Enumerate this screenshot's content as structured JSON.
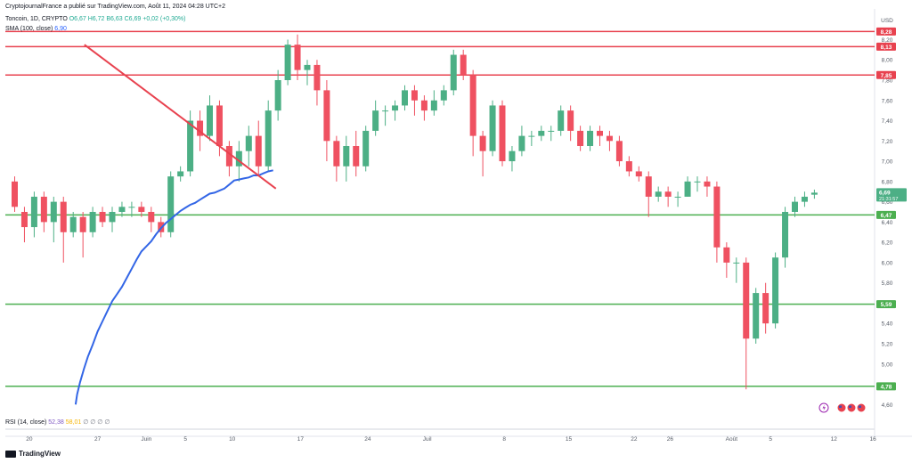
{
  "header": {
    "publish_line": "CryptojournalFrance a publié sur TradingView.com, Août 11, 2024 04:28 UTC+2",
    "symbol": "Toncoin, 1D, CRYPTO",
    "ohlc": "O6,67 H6,72 B6,63 C6,69 +0,02 (+0,30%)",
    "sma_label": "SMA (100, close)",
    "sma_value": "6,90"
  },
  "rsi": {
    "label": "RSI (14, close)",
    "value1": "52,38",
    "value2": "58,01",
    "extra": "∅ ∅ ∅ ∅"
  },
  "footer": {
    "brand": "TradingView"
  },
  "colors": {
    "up": "#4caf85",
    "down": "#ef5161",
    "sma": "#3366e6",
    "trendline": "#e8424f",
    "hline_red": "#e8424f",
    "hline_green": "#4caf50",
    "axis_text": "#555b66"
  },
  "chart_data": {
    "type": "candlestick",
    "currency": "USD",
    "ylim": [
      4.55,
      8.45
    ],
    "yticks": [
      "8,20",
      "8,00",
      "7,80",
      "7,60",
      "7,40",
      "7,20",
      "7,00",
      "6,80",
      "6,60",
      "6,40",
      "6,20",
      "6,00",
      "5,80",
      "5,60",
      "5,40",
      "5,20",
      "5,00",
      "4,80",
      "4,60"
    ],
    "xticks": [
      "20",
      "27",
      "Juin",
      "5",
      "10",
      "17",
      "24",
      "Juil",
      "8",
      "15",
      "22",
      "26",
      "Août",
      "5",
      "12",
      "16"
    ],
    "candles": [
      [
        6.8,
        6.55,
        6.85,
        6.5
      ],
      [
        6.5,
        6.35,
        6.55,
        6.2
      ],
      [
        6.35,
        6.65,
        6.7,
        6.25
      ],
      [
        6.65,
        6.4,
        6.7,
        6.3
      ],
      [
        6.4,
        6.6,
        6.65,
        6.2
      ],
      [
        6.6,
        6.3,
        6.65,
        6.0
      ],
      [
        6.3,
        6.45,
        6.5,
        6.25
      ],
      [
        6.45,
        6.3,
        6.5,
        6.05
      ],
      [
        6.3,
        6.5,
        6.55,
        6.25
      ],
      [
        6.5,
        6.4,
        6.55,
        6.35
      ],
      [
        6.4,
        6.5,
        6.55,
        6.3
      ],
      [
        6.5,
        6.55,
        6.6,
        6.45
      ],
      [
        6.55,
        6.55,
        6.6,
        6.45
      ],
      [
        6.55,
        6.5,
        6.6,
        6.45
      ],
      [
        6.5,
        6.4,
        6.55,
        6.3
      ],
      [
        6.4,
        6.3,
        6.45,
        6.25
      ],
      [
        6.3,
        6.85,
        6.9,
        6.25
      ],
      [
        6.85,
        6.9,
        6.95,
        6.8
      ],
      [
        6.9,
        7.4,
        7.5,
        6.85
      ],
      [
        7.4,
        7.25,
        7.5,
        7.1
      ],
      [
        7.25,
        7.55,
        7.65,
        7.2
      ],
      [
        7.55,
        7.15,
        7.6,
        7.05
      ],
      [
        7.15,
        6.95,
        7.2,
        6.85
      ],
      [
        6.95,
        7.1,
        7.2,
        6.8
      ],
      [
        7.1,
        7.25,
        7.35,
        6.95
      ],
      [
        7.25,
        6.95,
        7.4,
        6.85
      ],
      [
        6.95,
        7.5,
        7.6,
        6.9
      ],
      [
        7.5,
        7.8,
        7.9,
        7.4
      ],
      [
        7.8,
        8.15,
        8.2,
        7.75
      ],
      [
        8.15,
        7.9,
        8.25,
        7.8
      ],
      [
        7.9,
        7.95,
        8.0,
        7.75
      ],
      [
        7.95,
        7.7,
        8.0,
        7.55
      ],
      [
        7.7,
        7.2,
        7.8,
        7.0
      ],
      [
        7.2,
        6.95,
        7.25,
        6.8
      ],
      [
        6.95,
        7.15,
        7.25,
        6.8
      ],
      [
        7.15,
        6.95,
        7.3,
        6.85
      ],
      [
        6.95,
        7.3,
        7.35,
        6.9
      ],
      [
        7.3,
        7.5,
        7.6,
        7.25
      ],
      [
        7.5,
        7.5,
        7.55,
        7.35
      ],
      [
        7.5,
        7.55,
        7.6,
        7.4
      ],
      [
        7.55,
        7.7,
        7.75,
        7.5
      ],
      [
        7.7,
        7.6,
        7.75,
        7.45
      ],
      [
        7.6,
        7.5,
        7.65,
        7.4
      ],
      [
        7.5,
        7.6,
        7.7,
        7.45
      ],
      [
        7.6,
        7.7,
        7.75,
        7.55
      ],
      [
        7.7,
        8.05,
        8.1,
        7.65
      ],
      [
        8.05,
        7.85,
        8.1,
        7.8
      ],
      [
        7.85,
        7.25,
        7.9,
        7.05
      ],
      [
        7.25,
        7.1,
        7.3,
        6.85
      ],
      [
        7.1,
        7.55,
        7.6,
        7.05
      ],
      [
        7.55,
        7.0,
        7.6,
        6.95
      ],
      [
        7.0,
        7.1,
        7.15,
        6.9
      ],
      [
        7.1,
        7.25,
        7.35,
        7.05
      ],
      [
        7.25,
        7.25,
        7.3,
        7.15
      ],
      [
        7.25,
        7.3,
        7.35,
        7.2
      ],
      [
        7.3,
        7.3,
        7.35,
        7.2
      ],
      [
        7.3,
        7.5,
        7.55,
        7.25
      ],
      [
        7.5,
        7.3,
        7.55,
        7.2
      ],
      [
        7.3,
        7.15,
        7.35,
        7.1
      ],
      [
        7.15,
        7.3,
        7.35,
        7.1
      ],
      [
        7.3,
        7.25,
        7.35,
        7.15
      ],
      [
        7.25,
        7.2,
        7.3,
        7.1
      ],
      [
        7.2,
        7.0,
        7.25,
        6.95
      ],
      [
        7.0,
        6.9,
        7.05,
        6.85
      ],
      [
        6.9,
        6.85,
        6.95,
        6.8
      ],
      [
        6.85,
        6.65,
        6.9,
        6.45
      ],
      [
        6.65,
        6.7,
        6.75,
        6.6
      ],
      [
        6.7,
        6.65,
        6.75,
        6.55
      ],
      [
        6.65,
        6.65,
        6.7,
        6.55
      ],
      [
        6.65,
        6.8,
        6.85,
        6.65
      ],
      [
        6.8,
        6.8,
        6.85,
        6.7
      ],
      [
        6.8,
        6.75,
        6.85,
        6.65
      ],
      [
        6.75,
        6.15,
        6.8,
        6.0
      ],
      [
        6.15,
        6.0,
        6.2,
        5.85
      ],
      [
        6.0,
        6.0,
        6.05,
        5.8
      ],
      [
        6.0,
        5.25,
        6.05,
        4.75
      ],
      [
        5.25,
        5.7,
        5.75,
        5.2
      ],
      [
        5.7,
        5.4,
        5.8,
        5.3
      ],
      [
        5.4,
        6.05,
        6.1,
        5.35
      ],
      [
        6.05,
        6.5,
        6.55,
        5.95
      ],
      [
        6.5,
        6.6,
        6.65,
        6.45
      ],
      [
        6.6,
        6.65,
        6.7,
        6.55
      ],
      [
        6.67,
        6.69,
        6.72,
        6.63
      ]
    ],
    "sma": [
      [
        6.25,
        4.6
      ],
      [
        6.4,
        4.7
      ],
      [
        6.7,
        4.82
      ],
      [
        7.1,
        4.95
      ],
      [
        7.5,
        5.07
      ],
      [
        8.0,
        5.19
      ],
      [
        8.5,
        5.32
      ],
      [
        9.0,
        5.42
      ],
      [
        9.5,
        5.52
      ],
      [
        10.0,
        5.62
      ],
      [
        10.5,
        5.69
      ],
      [
        11.0,
        5.76
      ],
      [
        11.5,
        5.85
      ],
      [
        12.0,
        5.94
      ],
      [
        12.5,
        6.03
      ],
      [
        13.0,
        6.11
      ],
      [
        13.5,
        6.16
      ],
      [
        14.0,
        6.21
      ],
      [
        14.5,
        6.28
      ],
      [
        15.0,
        6.34
      ],
      [
        15.5,
        6.39
      ],
      [
        16.0,
        6.43
      ],
      [
        16.5,
        6.47
      ],
      [
        17.0,
        6.51
      ],
      [
        17.5,
        6.54
      ],
      [
        18.0,
        6.57
      ],
      [
        18.5,
        6.59
      ],
      [
        19.0,
        6.62
      ],
      [
        19.5,
        6.65
      ],
      [
        20.0,
        6.68
      ],
      [
        20.5,
        6.69
      ],
      [
        21.0,
        6.71
      ],
      [
        21.5,
        6.73
      ],
      [
        22.0,
        6.77
      ],
      [
        22.5,
        6.81
      ],
      [
        23.0,
        6.82
      ],
      [
        23.5,
        6.83
      ],
      [
        24.0,
        6.84
      ],
      [
        24.5,
        6.86
      ],
      [
        25.0,
        6.86
      ],
      [
        25.5,
        6.88
      ],
      [
        26.0,
        6.9
      ],
      [
        26.5,
        6.91
      ]
    ],
    "hlines": [
      {
        "value": 8.28,
        "label": "8,28",
        "color": "red"
      },
      {
        "value": 8.13,
        "label": "8,13",
        "color": "red"
      },
      {
        "value": 7.85,
        "label": "7,85",
        "color": "red"
      },
      {
        "value": 6.47,
        "label": "6,47",
        "color": "green"
      },
      {
        "value": 5.59,
        "label": "5,59",
        "color": "green"
      },
      {
        "value": 4.78,
        "label": "4,78",
        "color": "green"
      }
    ],
    "trendline": [
      [
        7.15,
        8.15
      ],
      [
        26.78,
        6.73
      ]
    ],
    "last_price": {
      "value": 6.69,
      "label": "6,69",
      "countdown": "21:31:57"
    }
  }
}
